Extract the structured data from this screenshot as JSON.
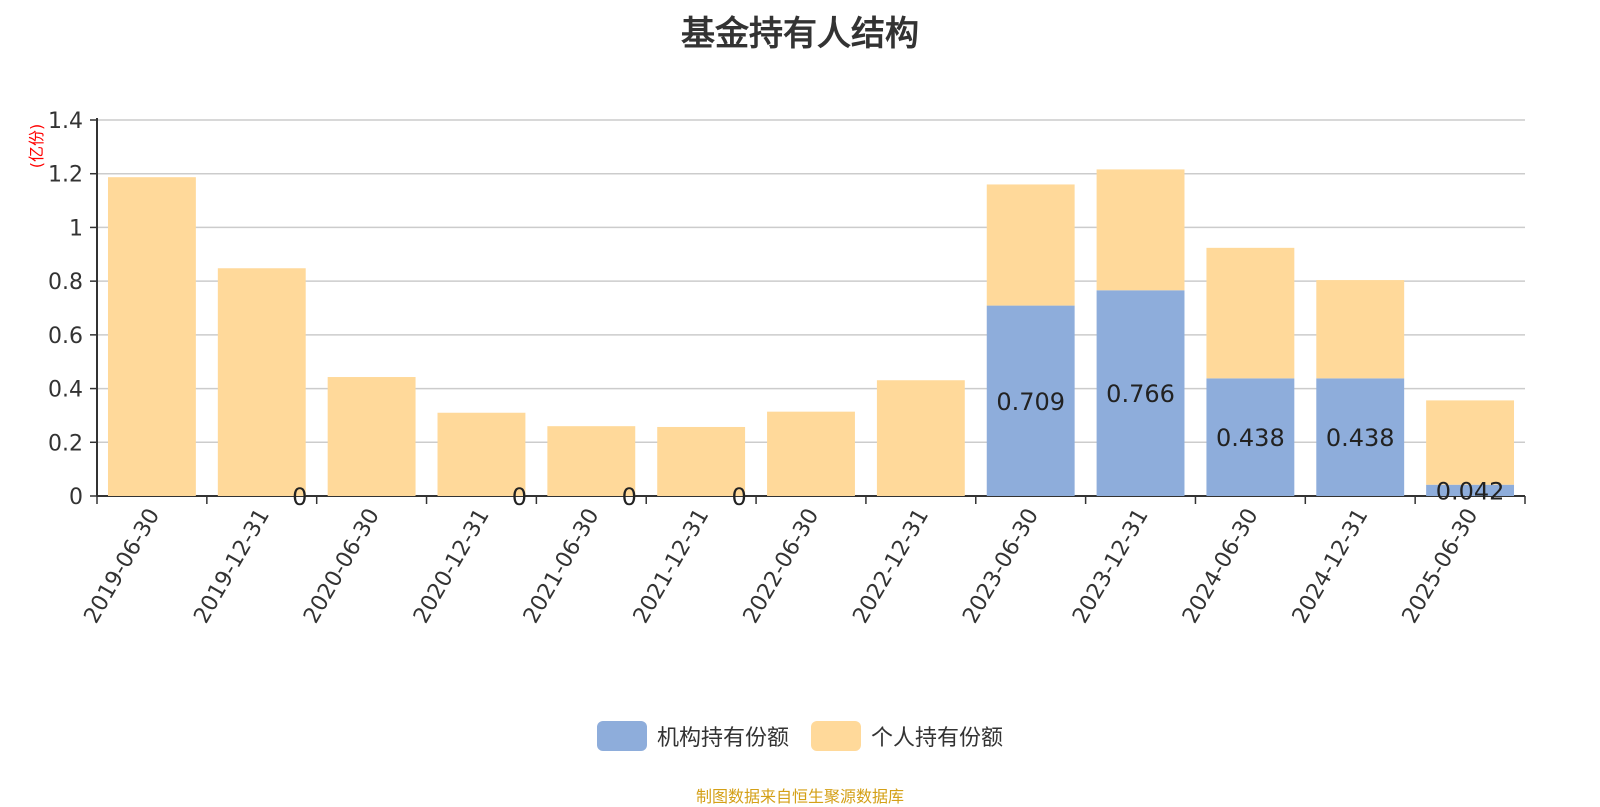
{
  "title": "基金持有人结构",
  "source": "制图数据来自恒生聚源数据库",
  "colors": {
    "institution": "#8eaddb",
    "individual": "#ffd99a",
    "axis": "#333333",
    "grid": "#cccccc",
    "unit": "#ff0000"
  },
  "chart_data": {
    "type": "bar",
    "stacked": true,
    "title": "基金持有人结构",
    "ylabel": "(亿份)",
    "ylim": [
      0,
      1.4
    ],
    "yticks": [
      "0",
      "0.2",
      "0.4",
      "0.6",
      "0.8",
      "1",
      "1.2",
      "1.4"
    ],
    "yticks_values": [
      0,
      0.2,
      0.4,
      0.6,
      0.8,
      1.0,
      1.2,
      1.4
    ],
    "grid": true,
    "legend_position": "bottom",
    "categories": [
      "2019-06-30",
      "2019-12-31",
      "2020-06-30",
      "2020-12-31",
      "2021-06-30",
      "2021-12-31",
      "2022-06-30",
      "2022-12-31",
      "2023-06-30",
      "2023-12-31",
      "2024-06-30",
      "2024-12-31",
      "2025-06-30"
    ],
    "series": [
      {
        "name": "机构持有份额",
        "values": [
          0,
          0,
          0,
          0,
          0,
          0,
          0,
          0,
          0.709,
          0.766,
          0.438,
          0.438,
          0.042
        ],
        "labels": [
          "",
          "0",
          "",
          "0",
          "0",
          "0",
          "",
          "",
          "0.709",
          "0.766",
          "0.438",
          "0.438",
          "0.042"
        ]
      },
      {
        "name": "个人持有份额",
        "values": [
          1.187,
          0.848,
          0.443,
          0.31,
          0.26,
          0.257,
          0.314,
          0.431,
          0.451,
          0.45,
          0.486,
          0.366,
          0.314
        ]
      }
    ]
  }
}
